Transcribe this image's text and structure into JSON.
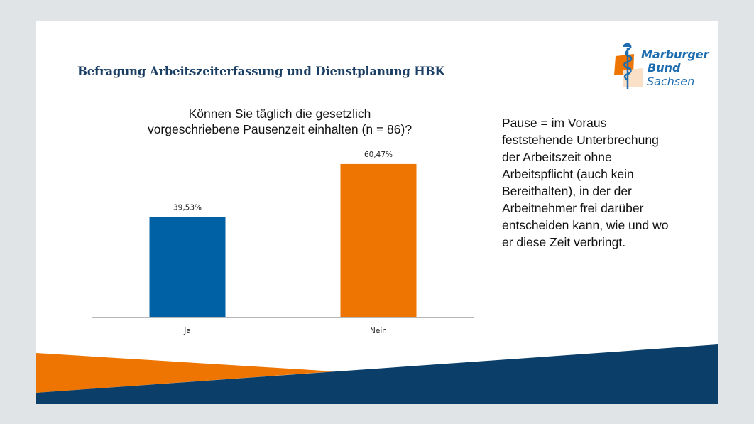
{
  "header": {
    "title": "Befragung Arbeitszeiterfassung und Dienstplanung HBK",
    "logo": {
      "line1": "Marburger",
      "line2": "Bund",
      "line3": "Sachsen",
      "icon": "rod-of-asclepius-icon"
    }
  },
  "colors": {
    "background": "#e1e4e7",
    "title": "#1b3f64",
    "ja_bar": "#0061a4",
    "nein_bar": "#ee7501",
    "footer_blue": "#0b3e68",
    "footer_orange": "#ee7501"
  },
  "note": {
    "lines": [
      "Pause = im Voraus",
      "feststehende Unterbrechung",
      "der Arbeitszeit ohne",
      "Arbeitspflicht (auch kein",
      "Bereithalten), in der der",
      "Arbeitnehmer frei darüber",
      "entscheiden kann, wie und wo",
      "er diese Zeit verbringt."
    ]
  },
  "chart_data": {
    "type": "bar",
    "title": "Können Sie täglich die gesetzlich vorgeschriebene Pausenzeit einhalten (n = 86)?",
    "title_lines": [
      "Können Sie täglich die gesetzlich",
      "vorgeschriebene Pausenzeit einhalten (n = 86)?"
    ],
    "categories": [
      "Ja",
      "Nein"
    ],
    "values": [
      39.53,
      60.47
    ],
    "data_labels": [
      "39,53%",
      "60,47%"
    ],
    "bar_colors": [
      "#0061a4",
      "#ee7501"
    ],
    "xlabel": "",
    "ylabel": "",
    "ylim": [
      0,
      75
    ],
    "grid": false,
    "legend": "none"
  }
}
